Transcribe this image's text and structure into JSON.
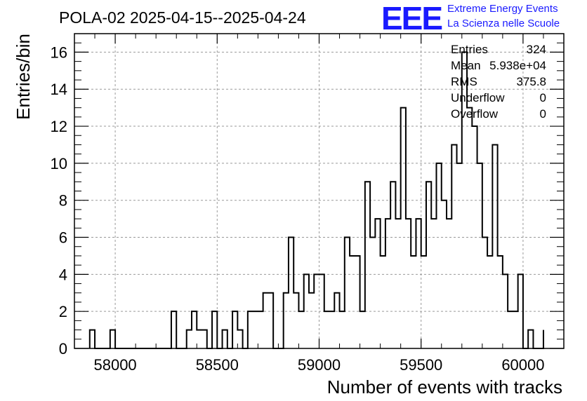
{
  "chart_data": {
    "type": "bar",
    "title": "POLA-02 2025-04-15--2025-04-24",
    "xlabel": "Number of events with tracks",
    "ylabel": "Entries/bin",
    "xlim": [
      57800,
      60200
    ],
    "ylim": [
      0,
      17
    ],
    "x_ticks": [
      "58000",
      "58500",
      "59000",
      "59500",
      "60000"
    ],
    "y_ticks": [
      "0",
      "2",
      "4",
      "6",
      "8",
      "10",
      "12",
      "14",
      "16"
    ],
    "grid": true,
    "bin_width": 25,
    "bin_edges": [
      57875,
      57900,
      57925,
      57950,
      57975,
      58000,
      58025,
      58050,
      58075,
      58100,
      58125,
      58150,
      58175,
      58200,
      58225,
      58250,
      58275,
      58300,
      58325,
      58350,
      58375,
      58400,
      58425,
      58450,
      58475,
      58500,
      58525,
      58550,
      58575,
      58600,
      58625,
      58650,
      58675,
      58700,
      58725,
      58750,
      58775,
      58800,
      58825,
      58850,
      58875,
      58900,
      58925,
      58950,
      58975,
      59000,
      59025,
      59050,
      59075,
      59100,
      59125,
      59150,
      59175,
      59200,
      59225,
      59250,
      59275,
      59300,
      59325,
      59350,
      59375,
      59400,
      59425,
      59450,
      59475,
      59500,
      59525,
      59550,
      59575,
      59600,
      59625,
      59650,
      59675,
      59700,
      59725,
      59750,
      59775,
      59800,
      59825,
      59850,
      59875,
      59900,
      59925,
      59950,
      59975,
      60000,
      60025,
      60050,
      60075,
      60100
    ],
    "counts": [
      1,
      0,
      0,
      0,
      1,
      0,
      0,
      0,
      0,
      0,
      0,
      0,
      0,
      0,
      0,
      0,
      2,
      0,
      0,
      1,
      2,
      1,
      1,
      0,
      2,
      0,
      1,
      0,
      2,
      1,
      0,
      2,
      2,
      2,
      3,
      3,
      0,
      0,
      3,
      6,
      3,
      2,
      4,
      3,
      4,
      4,
      2,
      2,
      3,
      2,
      6,
      5,
      5,
      2,
      9,
      6,
      7,
      5,
      7,
      9,
      7,
      13,
      7,
      5,
      7,
      5,
      9,
      7,
      10,
      8,
      7,
      11,
      10,
      16,
      13,
      12,
      10,
      6,
      5,
      11,
      5,
      4,
      2,
      2,
      4,
      0,
      1,
      0,
      0,
      1
    ],
    "stats": {
      "rows": [
        {
          "label": "Entries",
          "value": "324"
        },
        {
          "label": "Mean",
          "value": "5.938e+04"
        },
        {
          "label": "RMS",
          "value": "375.8"
        },
        {
          "label": "Underflow",
          "value": "0"
        },
        {
          "label": "Overflow",
          "value": "0"
        }
      ]
    },
    "line_color": "#000000",
    "grid_color": "#999999"
  },
  "logo": {
    "mark": "EEE",
    "line1": "Extreme Energy Events",
    "line2": "La Scienza nelle Scuole",
    "color": "#1a1aff"
  }
}
